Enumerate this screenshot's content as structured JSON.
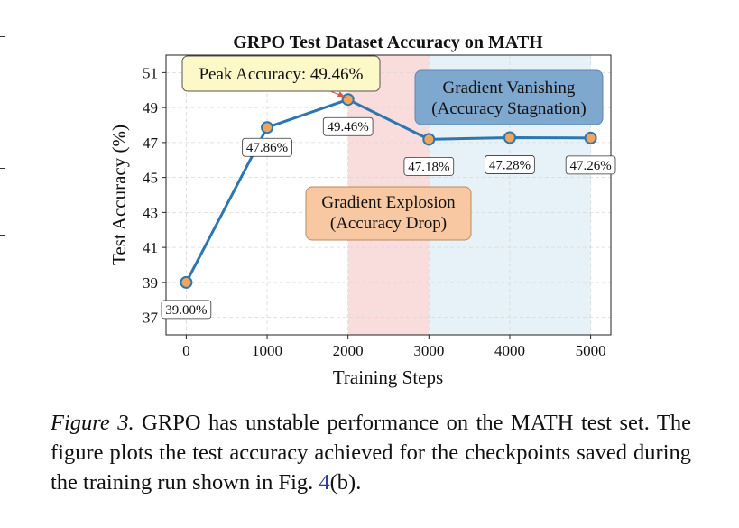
{
  "chart_data": {
    "type": "line",
    "title": "GRPO Test Dataset Accuracy on MATH",
    "xlabel": "Training Steps",
    "ylabel": "Test Accuracy (%)",
    "x": [
      0,
      1000,
      2000,
      3000,
      4000,
      5000
    ],
    "series": [
      {
        "values": [
          39.0,
          47.86,
          49.46,
          47.18,
          47.28,
          47.26
        ],
        "point_labels": [
          "39.00%",
          "47.86%",
          "49.46%",
          "47.18%",
          "47.28%",
          "47.26%"
        ]
      }
    ],
    "xlim": [
      -250,
      5250
    ],
    "ylim": [
      36,
      52
    ],
    "xticks": [
      0,
      1000,
      2000,
      3000,
      4000,
      5000
    ],
    "xtick_labels": [
      "0",
      "1000",
      "2000",
      "3000",
      "4000",
      "5000"
    ],
    "yticks": [
      37,
      39,
      41,
      43,
      45,
      47,
      49,
      51
    ],
    "ytick_labels": [
      "37",
      "39",
      "41",
      "43",
      "45",
      "47",
      "49",
      "51"
    ],
    "grid": true,
    "shaded_regions": [
      {
        "x_start": 2000,
        "x_end": 3000,
        "color": "#f8d9d9"
      },
      {
        "x_start": 3000,
        "x_end": 5000,
        "color": "#e3f1f6"
      }
    ],
    "annotations": [
      {
        "text": "Peak Accuracy: 49.46%",
        "color": "#fdf8c8",
        "border": "#555555",
        "arrow_to": [
          2000,
          49.46
        ]
      },
      {
        "lines": [
          "Gradient Explosion",
          "(Accuracy Drop)"
        ],
        "color": "#f7c8a2"
      },
      {
        "lines": [
          "Gradient Vanishing",
          "(Accuracy Stagnation)"
        ],
        "color": "#7fa8cf"
      }
    ],
    "colors": {
      "line": "#2e76ad",
      "marker_fill": "#f0a55f",
      "marker_edge": "#2e76ad"
    }
  },
  "caption": {
    "label": "Figure 3.",
    "text_before": " GRPO has unstable performance on the MATH test set. The figure plots the test accuracy achieved for the checkpoints saved during the training run shown in Fig. ",
    "ref": "4",
    "text_after": "(b)."
  }
}
